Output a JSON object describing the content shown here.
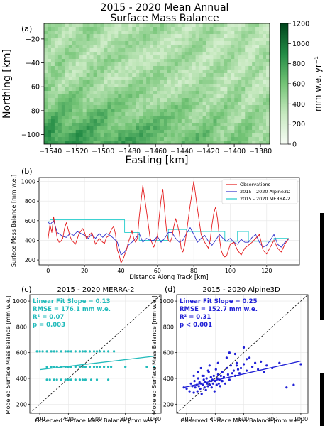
{
  "figure": {
    "title_line1": "2015 - 2020 Mean Annual",
    "title_line2": "Surface Mass Balance"
  },
  "chart_data": [
    {
      "panel_label": "(a)",
      "type": "heatmap",
      "title": "2015 - 2020 Mean Annual Surface Mass Balance",
      "xlabel": "Easting [km]",
      "ylabel": "Northing [km]",
      "xlim": [
        -1545,
        -1373
      ],
      "ylim": [
        -108,
        -7
      ],
      "xticks": [
        -1540,
        -1520,
        -1500,
        -1480,
        -1460,
        -1440,
        -1420,
        -1400,
        -1380
      ],
      "yticks": [
        -20,
        -40,
        -60,
        -80,
        -100
      ],
      "colorbar": {
        "label": "mm w.e. yr⁻¹",
        "min": 0,
        "max": 1200,
        "ticks": [
          0,
          200,
          400,
          600,
          800,
          1000,
          1200
        ],
        "color_low": "#f7fcf5",
        "color_high": "#00441b"
      }
    },
    {
      "panel_label": "(b)",
      "type": "line",
      "xlabel": "Distance Along Track [km]",
      "ylabel": "Surface Mass Balance [mm w.e.]",
      "xlim": [
        -5,
        138
      ],
      "ylim": [
        150,
        1040
      ],
      "xticks": [
        0,
        20,
        40,
        60,
        80,
        100,
        120
      ],
      "yticks": [
        200,
        400,
        600,
        800,
        1000
      ],
      "legend_position": "top-right",
      "series": [
        {
          "name": "Observations",
          "color": "#e41a1c",
          "x": [
            0,
            1,
            2,
            3,
            5,
            6,
            7,
            8,
            9,
            10,
            11,
            12,
            13,
            15,
            17,
            19,
            20,
            21,
            22,
            24,
            26,
            28,
            30,
            31,
            32,
            33,
            34,
            35,
            36,
            37,
            38,
            39,
            40,
            41,
            42,
            43,
            44,
            45,
            46,
            47,
            48,
            49,
            50,
            52,
            54,
            56,
            58,
            60,
            61,
            62,
            63,
            64,
            65,
            66,
            67,
            68,
            69,
            70,
            71,
            72,
            73,
            74,
            75,
            76,
            77,
            78,
            80,
            82,
            84,
            86,
            88,
            89,
            90,
            91,
            92,
            93,
            94,
            95,
            96,
            97,
            98,
            99,
            100,
            102,
            104,
            106,
            108,
            110,
            112,
            114,
            116,
            118,
            120,
            122,
            124,
            126,
            128,
            130,
            132
          ],
          "y": [
            420,
            560,
            480,
            640,
            420,
            380,
            390,
            420,
            520,
            580,
            510,
            440,
            400,
            360,
            470,
            520,
            480,
            420,
            440,
            480,
            360,
            420,
            380,
            370,
            430,
            440,
            480,
            520,
            540,
            460,
            300,
            250,
            170,
            200,
            250,
            300,
            380,
            430,
            500,
            420,
            380,
            420,
            640,
            960,
            700,
            420,
            330,
            440,
            640,
            820,
            920,
            700,
            500,
            400,
            380,
            430,
            540,
            620,
            560,
            480,
            320,
            280,
            350,
            480,
            620,
            760,
            1000,
            720,
            460,
            380,
            320,
            400,
            560,
            680,
            740,
            620,
            430,
            300,
            250,
            230,
            240,
            300,
            360,
            380,
            300,
            250,
            320,
            350,
            380,
            420,
            460,
            300,
            260,
            330,
            400,
            320,
            280,
            360,
            420
          ]
        },
        {
          "name": "2015 - 2020 Alpine3D",
          "color": "#3333cc",
          "x": [
            0,
            1,
            3,
            5,
            8,
            10,
            12,
            14,
            16,
            18,
            20,
            22,
            24,
            26,
            28,
            30,
            32,
            34,
            36,
            38,
            40,
            42,
            44,
            46,
            48,
            50,
            52,
            54,
            56,
            58,
            60,
            62,
            64,
            66,
            68,
            70,
            72,
            74,
            76,
            78,
            80,
            82,
            84,
            86,
            88,
            90,
            92,
            94,
            96,
            98,
            100,
            102,
            104,
            106,
            108,
            110,
            112,
            114,
            116,
            118,
            120,
            122,
            124,
            126,
            128,
            130,
            132
          ],
          "y": [
            590,
            560,
            600,
            480,
            440,
            430,
            470,
            450,
            490,
            470,
            450,
            420,
            460,
            420,
            470,
            430,
            470,
            450,
            420,
            380,
            250,
            280,
            350,
            380,
            420,
            470,
            380,
            420,
            400,
            400,
            440,
            380,
            420,
            480,
            480,
            420,
            380,
            400,
            470,
            530,
            460,
            380,
            420,
            450,
            390,
            350,
            400,
            460,
            420,
            390,
            420,
            380,
            360,
            410,
            380,
            380,
            430,
            460,
            380,
            330,
            350,
            400,
            460,
            360,
            330,
            380,
            410
          ]
        },
        {
          "name": "2015 - 2020 MERRA-2",
          "color": "#22cccc",
          "x": [
            0,
            1,
            1,
            42,
            42,
            50,
            50,
            66,
            66,
            76,
            76,
            82,
            82,
            97,
            97,
            104,
            104,
            110,
            110,
            124,
            124,
            132
          ],
          "y": [
            590,
            590,
            610,
            610,
            480,
            480,
            400,
            400,
            510,
            510,
            490,
            490,
            490,
            490,
            390,
            390,
            490,
            490,
            390,
            390,
            420,
            420
          ]
        }
      ]
    },
    {
      "panel_label": "(c)",
      "type": "scatter",
      "title": "2015 - 2020 MERRA-2",
      "xlabel": "Observed Surface Mass Balance [mm w.e.]",
      "ylabel": "Modeled Surface Mass Balance [mm w.e.]",
      "xlim": [
        130,
        1050
      ],
      "ylim": [
        130,
        1050
      ],
      "xticks": [
        200,
        400,
        600,
        800,
        1000
      ],
      "yticks": [
        200,
        400,
        600,
        800,
        1000
      ],
      "color": "#22bbbb",
      "stats": [
        "Linear Fit Slope = 0.13",
        "RMSE = 176.1 mm w.e.",
        "R² = 0.07",
        "p = 0.003"
      ],
      "fit_line": {
        "x": [
          200,
          1000
        ],
        "y": [
          468,
          572
        ]
      },
      "x": [
        180,
        200,
        220,
        250,
        280,
        300,
        320,
        350,
        380,
        400,
        420,
        450,
        480,
        500,
        520,
        550,
        580,
        600,
        620,
        650,
        680,
        720,
        250,
        280,
        300,
        320,
        350,
        380,
        400,
        420,
        450,
        480,
        500,
        520,
        550,
        580,
        600,
        620,
        650,
        680,
        700,
        800,
        950,
        1000,
        250,
        270,
        300,
        320,
        350,
        380,
        400,
        420,
        450,
        480,
        500,
        520,
        560,
        600,
        680
      ],
      "y": [
        610,
        610,
        610,
        610,
        610,
        610,
        610,
        610,
        610,
        610,
        610,
        610,
        610,
        610,
        610,
        610,
        610,
        610,
        610,
        610,
        610,
        610,
        490,
        490,
        490,
        490,
        490,
        490,
        490,
        490,
        490,
        490,
        490,
        490,
        490,
        490,
        490,
        490,
        490,
        490,
        490,
        490,
        490,
        490,
        390,
        390,
        390,
        390,
        390,
        390,
        390,
        390,
        390,
        390,
        390,
        390,
        390,
        390,
        390
      ]
    },
    {
      "panel_label": "(d)",
      "type": "scatter",
      "title": "2015 - 2020 Alpine3D",
      "xlabel": "Observed Surface Mass Balance [mm w.e.]",
      "ylabel": "Modeled Surface Mass Balance [mm w.e.]",
      "xlim": [
        130,
        1050
      ],
      "ylim": [
        130,
        1050
      ],
      "xticks": [
        200,
        400,
        600,
        800,
        1000
      ],
      "yticks": [
        200,
        400,
        600,
        800,
        1000
      ],
      "color": "#1f1fd6",
      "stats": [
        "Linear Fit Slope = 0.25",
        "RMSE = 152.7 mm w.e.",
        "R² = 0.31",
        "p < 0.001"
      ],
      "fit_line": {
        "x": [
          180,
          1000
        ],
        "y": [
          330,
          535
        ]
      },
      "x": [
        180,
        200,
        220,
        230,
        240,
        250,
        255,
        260,
        270,
        275,
        280,
        285,
        290,
        295,
        300,
        305,
        310,
        315,
        320,
        325,
        330,
        335,
        340,
        345,
        350,
        355,
        360,
        365,
        370,
        375,
        380,
        385,
        390,
        395,
        400,
        405,
        410,
        415,
        420,
        425,
        430,
        435,
        440,
        445,
        450,
        460,
        470,
        480,
        490,
        500,
        510,
        520,
        530,
        540,
        550,
        560,
        570,
        580,
        600,
        620,
        640,
        660,
        680,
        700,
        720,
        740,
        760,
        800,
        850,
        900,
        950,
        1000,
        280,
        300,
        320,
        360,
        420,
        480,
        540,
        600,
        250,
        350,
        450,
        500,
        550,
        620
      ],
      "y": [
        330,
        320,
        300,
        360,
        340,
        290,
        380,
        330,
        350,
        300,
        400,
        340,
        370,
        320,
        360,
        280,
        420,
        350,
        390,
        330,
        370,
        310,
        400,
        360,
        340,
        450,
        380,
        350,
        410,
        330,
        390,
        360,
        420,
        300,
        380,
        470,
        350,
        400,
        430,
        360,
        390,
        340,
        420,
        380,
        450,
        410,
        360,
        480,
        430,
        390,
        500,
        440,
        460,
        420,
        520,
        470,
        440,
        480,
        510,
        460,
        560,
        490,
        520,
        470,
        530,
        450,
        500,
        480,
        520,
        330,
        350,
        510,
        450,
        480,
        420,
        500,
        520,
        560,
        590,
        640,
        420,
        460,
        380,
        600,
        500,
        550
      ]
    }
  ]
}
